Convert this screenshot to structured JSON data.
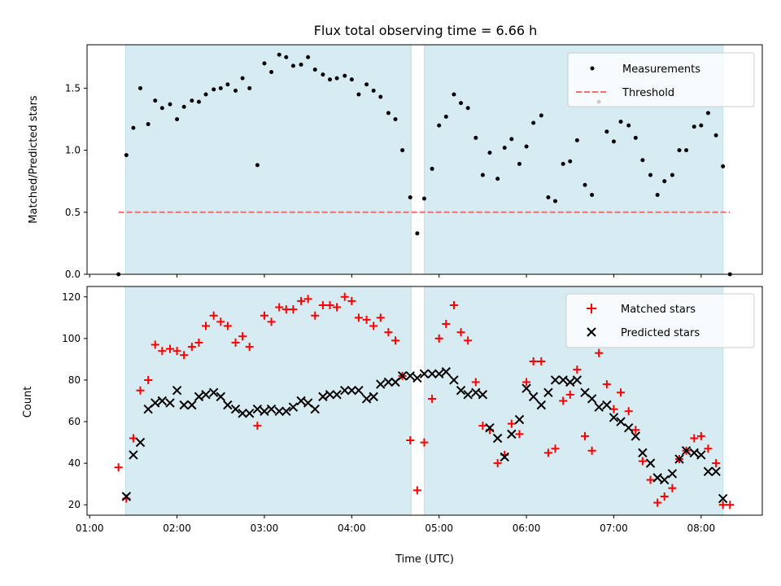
{
  "chart_data": [
    {
      "type": "scatter",
      "title": "Flux total observing time = 6.66 h",
      "xlabel": "",
      "ylabel": "Matched/Predicted stars",
      "ylim": [
        0,
        1.85
      ],
      "yticks": [
        0.0,
        0.5,
        1.0,
        1.5
      ],
      "ytick_labels": [
        "0.0",
        "0.5",
        "1.0",
        "1.5"
      ],
      "xlim": [
        0.97,
        8.7
      ],
      "shaded_intervals": [
        [
          1.41,
          4.68
        ],
        [
          4.83,
          8.25
        ]
      ],
      "legend": {
        "placement": "top-right",
        "entries": [
          "Measurements",
          "Threshold"
        ]
      },
      "threshold": {
        "name": "Threshold",
        "value": 0.5,
        "x_range": [
          1.33,
          8.33
        ],
        "color": "#f07070"
      },
      "series": [
        {
          "name": "Measurements",
          "color": "#000000",
          "points": [
            [
              1.33,
              0.0
            ],
            [
              1.42,
              0.96
            ],
            [
              1.5,
              1.18
            ],
            [
              1.58,
              1.5
            ],
            [
              1.67,
              1.21
            ],
            [
              1.75,
              1.4
            ],
            [
              1.83,
              1.34
            ],
            [
              1.92,
              1.37
            ],
            [
              2.0,
              1.25
            ],
            [
              2.08,
              1.35
            ],
            [
              2.17,
              1.4
            ],
            [
              2.25,
              1.39
            ],
            [
              2.33,
              1.45
            ],
            [
              2.42,
              1.49
            ],
            [
              2.5,
              1.5
            ],
            [
              2.58,
              1.53
            ],
            [
              2.67,
              1.48
            ],
            [
              2.75,
              1.58
            ],
            [
              2.83,
              1.5
            ],
            [
              2.92,
              0.88
            ],
            [
              3.0,
              1.7
            ],
            [
              3.08,
              1.63
            ],
            [
              3.17,
              1.77
            ],
            [
              3.25,
              1.75
            ],
            [
              3.33,
              1.68
            ],
            [
              3.42,
              1.69
            ],
            [
              3.5,
              1.75
            ],
            [
              3.58,
              1.65
            ],
            [
              3.67,
              1.61
            ],
            [
              3.75,
              1.57
            ],
            [
              3.83,
              1.58
            ],
            [
              3.92,
              1.6
            ],
            [
              4.0,
              1.57
            ],
            [
              4.08,
              1.45
            ],
            [
              4.17,
              1.53
            ],
            [
              4.25,
              1.48
            ],
            [
              4.33,
              1.43
            ],
            [
              4.42,
              1.3
            ],
            [
              4.5,
              1.25
            ],
            [
              4.58,
              1.0
            ],
            [
              4.67,
              0.62
            ],
            [
              4.75,
              0.33
            ],
            [
              4.83,
              0.61
            ],
            [
              4.92,
              0.85
            ],
            [
              5.0,
              1.2
            ],
            [
              5.08,
              1.27
            ],
            [
              5.17,
              1.45
            ],
            [
              5.25,
              1.38
            ],
            [
              5.33,
              1.34
            ],
            [
              5.42,
              1.1
            ],
            [
              5.5,
              0.8
            ],
            [
              5.58,
              0.98
            ],
            [
              5.67,
              0.77
            ],
            [
              5.75,
              1.02
            ],
            [
              5.83,
              1.09
            ],
            [
              5.92,
              0.89
            ],
            [
              6.0,
              1.03
            ],
            [
              6.08,
              1.22
            ],
            [
              6.17,
              1.28
            ],
            [
              6.25,
              0.62
            ],
            [
              6.33,
              0.59
            ],
            [
              6.42,
              0.89
            ],
            [
              6.5,
              0.91
            ],
            [
              6.58,
              1.08
            ],
            [
              6.67,
              0.72
            ],
            [
              6.75,
              0.64
            ],
            [
              6.83,
              1.39
            ],
            [
              6.92,
              1.15
            ],
            [
              7.0,
              1.07
            ],
            [
              7.08,
              1.23
            ],
            [
              7.17,
              1.2
            ],
            [
              7.25,
              1.1
            ],
            [
              7.33,
              0.92
            ],
            [
              7.42,
              0.8
            ],
            [
              7.5,
              0.64
            ],
            [
              7.58,
              0.75
            ],
            [
              7.67,
              0.8
            ],
            [
              7.75,
              1.0
            ],
            [
              7.83,
              1.0
            ],
            [
              7.92,
              1.19
            ],
            [
              8.0,
              1.2
            ],
            [
              8.08,
              1.3
            ],
            [
              8.17,
              1.12
            ],
            [
              8.25,
              0.87
            ],
            [
              8.33,
              0.0
            ]
          ]
        }
      ]
    },
    {
      "type": "scatter",
      "title": "",
      "xlabel": "Time (UTC)",
      "ylabel": "Count",
      "ylim": [
        15,
        125
      ],
      "yticks": [
        20,
        40,
        60,
        80,
        100,
        120
      ],
      "ytick_labels": [
        "20",
        "40",
        "60",
        "80",
        "100",
        "120"
      ],
      "xlim": [
        0.97,
        8.7
      ],
      "xticks": [
        1,
        2,
        3,
        4,
        5,
        6,
        7,
        8
      ],
      "xtick_labels": [
        "01:00",
        "02:00",
        "03:00",
        "04:00",
        "05:00",
        "06:00",
        "07:00",
        "08:00"
      ],
      "shaded_intervals": [
        [
          1.41,
          4.68
        ],
        [
          4.83,
          8.25
        ]
      ],
      "legend": {
        "placement": "top-right",
        "entries": [
          "Matched stars",
          "Predicted stars"
        ]
      },
      "series": [
        {
          "name": "Matched stars",
          "color": "#ff0000",
          "marker": "plus",
          "points": [
            [
              1.33,
              38
            ],
            [
              1.42,
              23
            ],
            [
              1.5,
              52
            ],
            [
              1.58,
              75
            ],
            [
              1.67,
              80
            ],
            [
              1.75,
              97
            ],
            [
              1.83,
              94
            ],
            [
              1.92,
              95
            ],
            [
              2.0,
              94
            ],
            [
              2.08,
              92
            ],
            [
              2.17,
              96
            ],
            [
              2.25,
              98
            ],
            [
              2.33,
              106
            ],
            [
              2.42,
              111
            ],
            [
              2.5,
              108
            ],
            [
              2.58,
              106
            ],
            [
              2.67,
              98
            ],
            [
              2.75,
              101
            ],
            [
              2.83,
              96
            ],
            [
              2.92,
              58
            ],
            [
              3.0,
              111
            ],
            [
              3.08,
              108
            ],
            [
              3.17,
              115
            ],
            [
              3.25,
              114
            ],
            [
              3.33,
              114
            ],
            [
              3.42,
              118
            ],
            [
              3.5,
              119
            ],
            [
              3.58,
              111
            ],
            [
              3.67,
              116
            ],
            [
              3.75,
              116
            ],
            [
              3.83,
              115
            ],
            [
              3.92,
              120
            ],
            [
              4.0,
              118
            ],
            [
              4.08,
              110
            ],
            [
              4.17,
              109
            ],
            [
              4.25,
              106
            ],
            [
              4.33,
              110
            ],
            [
              4.42,
              103
            ],
            [
              4.5,
              99
            ],
            [
              4.58,
              82
            ],
            [
              4.67,
              51
            ],
            [
              4.75,
              27
            ],
            [
              4.83,
              50
            ],
            [
              4.92,
              71
            ],
            [
              5.0,
              100
            ],
            [
              5.08,
              107
            ],
            [
              5.17,
              116
            ],
            [
              5.25,
              103
            ],
            [
              5.33,
              99
            ],
            [
              5.42,
              79
            ],
            [
              5.5,
              58
            ],
            [
              5.58,
              56
            ],
            [
              5.67,
              40
            ],
            [
              5.75,
              44
            ],
            [
              5.83,
              59
            ],
            [
              5.92,
              54
            ],
            [
              6.0,
              79
            ],
            [
              6.08,
              89
            ],
            [
              6.17,
              89
            ],
            [
              6.25,
              45
            ],
            [
              6.33,
              47
            ],
            [
              6.42,
              70
            ],
            [
              6.5,
              73
            ],
            [
              6.58,
              85
            ],
            [
              6.67,
              53
            ],
            [
              6.75,
              46
            ],
            [
              6.83,
              93
            ],
            [
              6.92,
              78
            ],
            [
              7.0,
              66
            ],
            [
              7.08,
              74
            ],
            [
              7.17,
              65
            ],
            [
              7.25,
              56
            ],
            [
              7.33,
              41
            ],
            [
              7.42,
              32
            ],
            [
              7.5,
              21
            ],
            [
              7.58,
              24
            ],
            [
              7.67,
              28
            ],
            [
              7.75,
              42
            ],
            [
              7.83,
              46
            ],
            [
              7.92,
              52
            ],
            [
              8.0,
              53
            ],
            [
              8.08,
              47
            ],
            [
              8.17,
              40
            ],
            [
              8.25,
              20
            ],
            [
              8.33,
              20
            ]
          ]
        },
        {
          "name": "Predicted stars",
          "color": "#000000",
          "marker": "x",
          "points": [
            [
              1.42,
              24
            ],
            [
              1.5,
              44
            ],
            [
              1.58,
              50
            ],
            [
              1.67,
              66
            ],
            [
              1.75,
              69
            ],
            [
              1.83,
              70
            ],
            [
              1.92,
              69
            ],
            [
              2.0,
              75
            ],
            [
              2.08,
              68
            ],
            [
              2.17,
              68
            ],
            [
              2.25,
              72
            ],
            [
              2.33,
              73
            ],
            [
              2.42,
              74
            ],
            [
              2.5,
              72
            ],
            [
              2.58,
              68
            ],
            [
              2.67,
              66
            ],
            [
              2.75,
              64
            ],
            [
              2.83,
              64
            ],
            [
              2.92,
              66
            ],
            [
              3.0,
              65
            ],
            [
              3.08,
              66
            ],
            [
              3.17,
              65
            ],
            [
              3.25,
              65
            ],
            [
              3.33,
              67
            ],
            [
              3.42,
              70
            ],
            [
              3.5,
              69
            ],
            [
              3.58,
              66
            ],
            [
              3.67,
              72
            ],
            [
              3.75,
              73
            ],
            [
              3.83,
              73
            ],
            [
              3.92,
              75
            ],
            [
              4.0,
              75
            ],
            [
              4.08,
              75
            ],
            [
              4.17,
              71
            ],
            [
              4.25,
              72
            ],
            [
              4.33,
              78
            ],
            [
              4.42,
              79
            ],
            [
              4.5,
              79
            ],
            [
              4.58,
              82
            ],
            [
              4.67,
              82
            ],
            [
              4.75,
              81
            ],
            [
              4.83,
              83
            ],
            [
              4.92,
              83
            ],
            [
              5.0,
              83
            ],
            [
              5.08,
              84
            ],
            [
              5.17,
              80
            ],
            [
              5.25,
              75
            ],
            [
              5.33,
              73
            ],
            [
              5.42,
              74
            ],
            [
              5.5,
              73
            ],
            [
              5.58,
              57
            ],
            [
              5.67,
              52
            ],
            [
              5.75,
              43
            ],
            [
              5.83,
              54
            ],
            [
              5.92,
              61
            ],
            [
              6.0,
              76
            ],
            [
              6.08,
              72
            ],
            [
              6.17,
              68
            ],
            [
              6.25,
              74
            ],
            [
              6.33,
              80
            ],
            [
              6.42,
              80
            ],
            [
              6.5,
              79
            ],
            [
              6.58,
              80
            ],
            [
              6.67,
              74
            ],
            [
              6.75,
              71
            ],
            [
              6.83,
              67
            ],
            [
              6.92,
              68
            ],
            [
              7.0,
              62
            ],
            [
              7.08,
              60
            ],
            [
              7.17,
              57
            ],
            [
              7.25,
              53
            ],
            [
              7.33,
              45
            ],
            [
              7.42,
              40
            ],
            [
              7.5,
              33
            ],
            [
              7.58,
              32
            ],
            [
              7.67,
              35
            ],
            [
              7.75,
              42
            ],
            [
              7.83,
              46
            ],
            [
              7.92,
              45
            ],
            [
              8.0,
              44
            ],
            [
              8.08,
              36
            ],
            [
              8.17,
              36
            ],
            [
              8.25,
              23
            ]
          ]
        }
      ]
    }
  ]
}
